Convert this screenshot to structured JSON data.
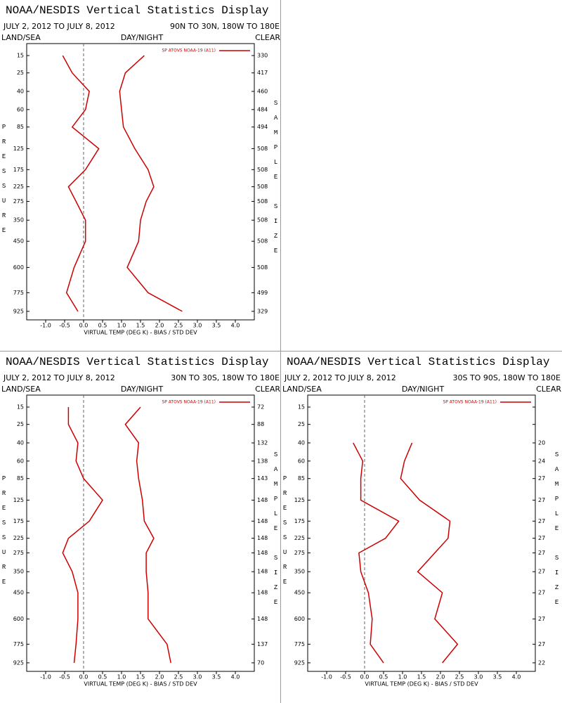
{
  "chart_data": [
    {
      "type": "line",
      "title": "NOAA/NESDIS Vertical Statistics Display",
      "date_range": "JULY 2, 2012 TO JULY 8, 2012",
      "region": "90N TO 30N, 180W TO 180E",
      "left_label": "LAND/SEA",
      "center_label": "DAY/NIGHT",
      "right_label": "CLEAR",
      "ylabel": "PRESSURE",
      "y2label": "SAMPLE SIZE",
      "xlabel": "VIRTUAL TEMP (DEG K) - BIAS / STD DEV",
      "xlim": [
        -1.5,
        4.5
      ],
      "xticks": [
        {
          "value": -1,
          "label": "-1.0"
        },
        -0.5,
        {
          "value": 0,
          "label": "0.0"
        },
        0.5,
        {
          "value": 1,
          "label": "1.0"
        },
        1.5,
        {
          "value": 2,
          "label": "2.0"
        },
        2.5,
        {
          "value": 3,
          "label": "3.0"
        },
        3.5,
        {
          "value": 4,
          "label": "4.0"
        }
      ],
      "ylim": [
        1000,
        10
      ],
      "yticks": [
        15,
        25,
        40,
        60,
        85,
        125,
        175,
        225,
        275,
        350,
        450,
        600,
        775,
        925
      ],
      "sample_size": [
        330,
        417,
        460,
        484,
        494,
        508,
        508,
        508,
        508,
        508,
        508,
        508,
        499,
        329
      ],
      "series": [
        {
          "name": "SP ATOVS NOAA-19 (A11)",
          "color": "#cc0000",
          "bias": [
            -0.55,
            -0.3,
            0.15,
            0.05,
            -0.3,
            0.4,
            0.05,
            -0.4,
            -0.2,
            0.05,
            0.05,
            -0.25,
            -0.45,
            -0.15
          ],
          "std_dev": [
            1.6,
            1.1,
            0.95,
            1.0,
            1.05,
            1.35,
            1.7,
            1.85,
            1.65,
            1.5,
            1.45,
            1.15,
            1.7,
            2.6
          ]
        }
      ]
    },
    {
      "type": "line",
      "title": "NOAA/NESDIS Vertical Statistics Display",
      "date_range": "JULY 2, 2012 TO JULY 8, 2012",
      "region": "30N TO 30S, 180W TO 180E",
      "left_label": "LAND/SEA",
      "center_label": "DAY/NIGHT",
      "right_label": "CLEAR",
      "ylabel": "PRESSURE",
      "y2label": "SAMPLE SIZE",
      "xlabel": "VIRTUAL TEMP (DEG K) - BIAS / STD DEV",
      "xlim": [
        -1.5,
        4.5
      ],
      "xticks": [
        {
          "value": -1,
          "label": "-1.0"
        },
        -0.5,
        {
          "value": 0,
          "label": "0.0"
        },
        0.5,
        {
          "value": 1,
          "label": "1.0"
        },
        1.5,
        {
          "value": 2,
          "label": "2.0"
        },
        2.5,
        {
          "value": 3,
          "label": "3.0"
        },
        3.5,
        {
          "value": 4,
          "label": "4.0"
        }
      ],
      "ylim": [
        1000,
        10
      ],
      "yticks": [
        15,
        25,
        40,
        60,
        85,
        125,
        175,
        225,
        275,
        350,
        450,
        600,
        775,
        925
      ],
      "sample_size": [
        72,
        88,
        132,
        138,
        143,
        148,
        148,
        148,
        148,
        148,
        148,
        148,
        137,
        70
      ],
      "series": [
        {
          "name": "SP ATOVS NOAA-19 (A11)",
          "color": "#cc0000",
          "bias": [
            -0.4,
            -0.4,
            -0.15,
            -0.2,
            0.0,
            0.5,
            0.15,
            -0.4,
            -0.55,
            -0.3,
            -0.15,
            -0.15,
            -0.2,
            -0.25
          ],
          "std_dev": [
            1.5,
            1.1,
            1.45,
            1.4,
            1.45,
            1.55,
            1.6,
            1.85,
            1.65,
            1.65,
            1.7,
            1.7,
            2.2,
            2.3
          ]
        }
      ]
    },
    {
      "type": "line",
      "title": "NOAA/NESDIS Vertical Statistics Display",
      "date_range": "JULY 2, 2012 TO JULY 8, 2012",
      "region": "30S TO 90S, 180W TO 180E",
      "left_label": "LAND/SEA",
      "center_label": "DAY/NIGHT",
      "right_label": "CLEAR",
      "ylabel": "PRESSURE",
      "y2label": "SAMPLE SIZE",
      "xlabel": "VIRTUAL TEMP (DEG K) - BIAS / STD DEV",
      "xlim": [
        -1.5,
        4.5
      ],
      "xticks": [
        {
          "value": -1,
          "label": "-1.0"
        },
        -0.5,
        {
          "value": 0,
          "label": "0.0"
        },
        0.5,
        {
          "value": 1,
          "label": "1.0"
        },
        1.5,
        {
          "value": 2,
          "label": "2.0"
        },
        2.5,
        {
          "value": 3,
          "label": "3.0"
        },
        3.5,
        {
          "value": 4,
          "label": "4.0"
        }
      ],
      "ylim": [
        1000,
        10
      ],
      "yticks": [
        15,
        25,
        40,
        60,
        85,
        125,
        175,
        225,
        275,
        350,
        450,
        600,
        775,
        925
      ],
      "sample_size": [
        null,
        null,
        20,
        24,
        27,
        27,
        27,
        27,
        27,
        27,
        27,
        27,
        27,
        22
      ],
      "series": [
        {
          "name": "SP ATOVS NOAA-19 (A11)",
          "color": "#cc0000",
          "bias": [
            null,
            null,
            -0.3,
            -0.05,
            -0.1,
            -0.1,
            0.9,
            0.55,
            -0.15,
            -0.1,
            0.1,
            0.2,
            0.15,
            0.5
          ],
          "std_dev": [
            null,
            null,
            1.25,
            1.05,
            0.95,
            1.45,
            2.25,
            2.2,
            1.85,
            1.4,
            2.05,
            1.85,
            2.45,
            2.05
          ]
        }
      ]
    }
  ]
}
